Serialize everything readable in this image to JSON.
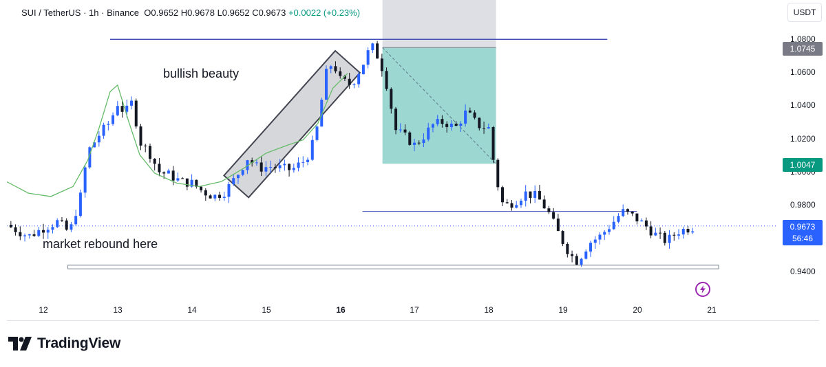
{
  "header": {
    "symbol": "SUI / TetherUS",
    "interval": "1h",
    "exchange": "Binance",
    "open": "O0.9652",
    "high": "H0.9678",
    "low": "L0.9652",
    "close": "C0.9673",
    "change": "+0.0022 (+0.23%)"
  },
  "currency": "USDT",
  "logo_text": "TradingView",
  "icons": {
    "logo": "tradingview-logo-icon",
    "flash": "lightning-icon"
  },
  "colors": {
    "up": "#2962ff",
    "down": "#131722",
    "target": "#26a69a",
    "ma": "#66bb6a",
    "price_tag": "#2962ff",
    "sl_tag": "#787b86",
    "tp_tag": "#089981"
  },
  "annotations": {
    "pattern": "bullish beauty",
    "rebound": "market rebound here"
  },
  "price_tags": {
    "stop": "1.0745",
    "target": "1.0047",
    "last": "0.9673",
    "countdown": "56:46"
  },
  "chart_data": {
    "type": "candlestick",
    "title": "SUI / TetherUS · 1h · Binance",
    "ylabel": "USDT",
    "ylim": [
      0.926,
      1.081
    ],
    "y_ticks": [
      "1.0800",
      "1.0600",
      "1.0400",
      "1.0200",
      "1.0000",
      "0.9800",
      "0.9400"
    ],
    "x_ticks": [
      "12",
      "13",
      "14",
      "15",
      "16",
      "17",
      "18",
      "19",
      "20",
      "21"
    ],
    "x_range_days": [
      11.5,
      21.0
    ],
    "close_path": [
      [
        11.5,
        0.968
      ],
      [
        11.8,
        0.961
      ],
      [
        12.0,
        0.966
      ],
      [
        12.2,
        0.97
      ],
      [
        12.35,
        0.963
      ],
      [
        12.5,
        0.985
      ],
      [
        12.6,
        1.012
      ],
      [
        12.75,
        1.022
      ],
      [
        12.9,
        1.03
      ],
      [
        13.0,
        1.041
      ],
      [
        13.1,
        1.035
      ],
      [
        13.2,
        1.042
      ],
      [
        13.3,
        1.018
      ],
      [
        13.45,
        1.01
      ],
      [
        13.55,
        1.0
      ],
      [
        13.7,
        0.998
      ],
      [
        13.85,
        0.994
      ],
      [
        14.0,
        0.993
      ],
      [
        14.15,
        0.988
      ],
      [
        14.3,
        0.985
      ],
      [
        14.45,
        0.988
      ],
      [
        14.6,
        0.997
      ],
      [
        14.75,
        1.008
      ],
      [
        14.9,
        1.002
      ],
      [
        15.05,
        1.003
      ],
      [
        15.2,
        1.002
      ],
      [
        15.35,
        1.001
      ],
      [
        15.5,
        1.006
      ],
      [
        15.6,
        1.012
      ],
      [
        15.7,
        1.028
      ],
      [
        15.8,
        1.058
      ],
      [
        15.9,
        1.066
      ],
      [
        16.0,
        1.055
      ],
      [
        16.15,
        1.052
      ],
      [
        16.3,
        1.064
      ],
      [
        16.42,
        1.076
      ],
      [
        16.52,
        1.068
      ],
      [
        16.6,
        1.058
      ],
      [
        16.75,
        1.025
      ],
      [
        16.9,
        1.02
      ],
      [
        17.0,
        1.016
      ],
      [
        17.1,
        1.02
      ],
      [
        17.25,
        1.028
      ],
      [
        17.4,
        1.03
      ],
      [
        17.55,
        1.026
      ],
      [
        17.7,
        1.036
      ],
      [
        17.85,
        1.028
      ],
      [
        18.0,
        1.026
      ],
      [
        18.1,
        0.996
      ],
      [
        18.2,
        0.979
      ],
      [
        18.35,
        0.982
      ],
      [
        18.5,
        0.987
      ],
      [
        18.65,
        0.985
      ],
      [
        18.8,
        0.976
      ],
      [
        18.95,
        0.962
      ],
      [
        19.1,
        0.95
      ],
      [
        19.2,
        0.946
      ],
      [
        19.35,
        0.957
      ],
      [
        19.5,
        0.961
      ],
      [
        19.65,
        0.968
      ],
      [
        19.8,
        0.976
      ],
      [
        19.95,
        0.973
      ],
      [
        20.1,
        0.968
      ],
      [
        20.25,
        0.962
      ],
      [
        20.4,
        0.958
      ],
      [
        20.55,
        0.964
      ],
      [
        20.7,
        0.966
      ],
      [
        20.8,
        0.967
      ]
    ],
    "moving_average": [
      [
        11.5,
        0.994
      ],
      [
        11.8,
        0.987
      ],
      [
        12.1,
        0.985
      ],
      [
        12.4,
        0.991
      ],
      [
        12.6,
        1.007
      ],
      [
        12.75,
        1.026
      ],
      [
        12.9,
        1.048
      ],
      [
        13.0,
        1.052
      ],
      [
        13.15,
        1.03
      ],
      [
        13.3,
        1.01
      ],
      [
        13.5,
        0.999
      ],
      [
        13.8,
        0.993
      ],
      [
        14.1,
        0.991
      ],
      [
        14.4,
        0.994
      ],
      [
        14.7,
        1.002
      ],
      [
        15.0,
        1.011
      ],
      [
        15.3,
        1.016
      ],
      [
        15.5,
        1.019
      ],
      [
        15.7,
        1.029
      ],
      [
        15.9,
        1.05
      ],
      [
        16.1,
        1.059
      ]
    ],
    "horizontal_lines": [
      {
        "price": 1.0795,
        "x_from": 12.9,
        "x_to": 19.6
      },
      {
        "price": 0.976,
        "x_from": 16.3,
        "x_to": 20.0
      }
    ],
    "support_zone": {
      "price_top": 0.9437,
      "price_bottom": 0.9415,
      "x_from": 12.33,
      "x_to": 21.1
    },
    "bull_channel": {
      "from": [
        14.6,
        0.991
      ],
      "to": [
        16.1,
        1.066
      ]
    },
    "short_position": {
      "x_from": 16.57,
      "x_to": 18.1,
      "entry": 1.0745,
      "stop_top": 1.081,
      "target": 1.0047
    },
    "last_price": 0.9673
  }
}
